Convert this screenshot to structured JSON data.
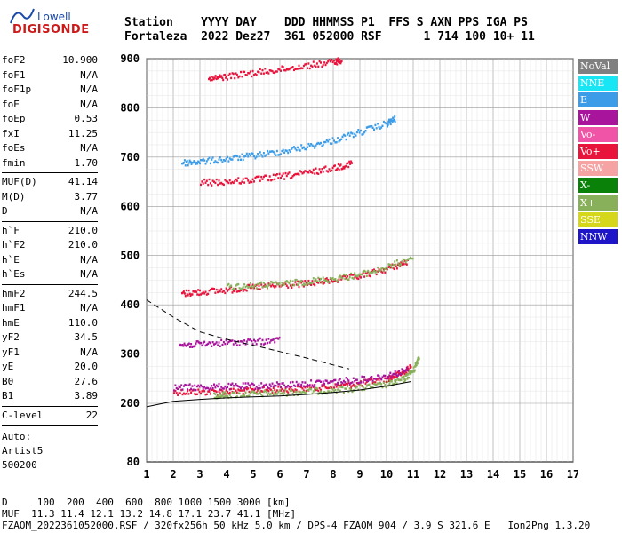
{
  "logo": {
    "line1": "Lowell",
    "line2": "DIGISONDE"
  },
  "header": {
    "row1": "Station    YYYY DAY    DDD HHMMSS P1  FFS S AXN PPS IGA PS",
    "row2": "Fortaleza  2022 Dez27  361 052000 RSF      1 714 100 10+ 11"
  },
  "params": {
    "group1": [
      {
        "k": "foF2",
        "v": "10.900"
      },
      {
        "k": "foF1",
        "v": "N/A"
      },
      {
        "k": "foF1p",
        "v": "N/A"
      },
      {
        "k": "foE",
        "v": "N/A"
      },
      {
        "k": "foEp",
        "v": "0.53"
      },
      {
        "k": "fxI",
        "v": "11.25"
      },
      {
        "k": "foEs",
        "v": "N/A"
      },
      {
        "k": "fmin",
        "v": "1.70"
      }
    ],
    "group2": [
      {
        "k": "MUF(D)",
        "v": "41.14"
      },
      {
        "k": "M(D)",
        "v": "3.77"
      },
      {
        "k": "D",
        "v": "N/A"
      }
    ],
    "group3": [
      {
        "k": "h`F",
        "v": "210.0"
      },
      {
        "k": "h`F2",
        "v": "210.0"
      },
      {
        "k": "h`E",
        "v": "N/A"
      },
      {
        "k": "h`Es",
        "v": "N/A"
      }
    ],
    "group4": [
      {
        "k": "hmF2",
        "v": "244.5"
      },
      {
        "k": "hmF1",
        "v": "N/A"
      },
      {
        "k": "hmE",
        "v": "110.0"
      },
      {
        "k": "yF2",
        "v": "34.5"
      },
      {
        "k": "yF1",
        "v": "N/A"
      },
      {
        "k": "yE",
        "v": "20.0"
      },
      {
        "k": "B0",
        "v": "27.6"
      },
      {
        "k": "B1",
        "v": "3.89"
      }
    ],
    "group5": [
      {
        "k": "C-level",
        "v": "22"
      }
    ]
  },
  "auto": {
    "l1": "Auto:",
    "l2": "Artist5",
    "l3": "500200"
  },
  "legend": [
    {
      "label": "NoVal",
      "color": "#808080"
    },
    {
      "label": "NNE",
      "color": "#19e6f5"
    },
    {
      "label": "E",
      "color": "#3c9ce8"
    },
    {
      "label": "W",
      "color": "#a8149c"
    },
    {
      "label": "Vo-",
      "color": "#ef54a6"
    },
    {
      "label": "Vo+",
      "color": "#e8143c"
    },
    {
      "label": "SSW",
      "color": "#f5a3a3"
    },
    {
      "label": "X-",
      "color": "#0a820a"
    },
    {
      "label": "X+",
      "color": "#88b05a"
    },
    {
      "label": "SSE",
      "color": "#d6d61a"
    },
    {
      "label": "NNW",
      "color": "#1e14c8"
    }
  ],
  "footer": {
    "l1": "D     100  200  400  600  800 1000 1500 3000 [km]",
    "l2": "MUF  11.3 11.4 12.1 13.2 14.8 17.1 23.7 41.1 [MHz]",
    "l3": "FZAOM_2022361052000.RSF / 320fx256h 50 kHz 5.0 km / DPS-4 FZAOM 904 / 3.9 S 321.6 E   Ion2Png 1.3.20"
  },
  "chart_data": {
    "type": "scatter",
    "title": "",
    "xlabel": "",
    "ylabel": "",
    "xlim": [
      1,
      17
    ],
    "ylim": [
      80,
      900
    ],
    "x_ticks": [
      1,
      2,
      3,
      4,
      5,
      6,
      7,
      8,
      9,
      10,
      11,
      12,
      13,
      14,
      15,
      16,
      17
    ],
    "y_ticks": [
      80,
      200,
      300,
      400,
      500,
      600,
      700,
      800,
      900
    ],
    "traces": [
      {
        "name": "o-trace F",
        "color": "#e8143c",
        "x": [
          2.0,
          3,
          4,
          5,
          6,
          7,
          8,
          9,
          10,
          10.5,
          10.9
        ],
        "y": [
          225,
          225,
          226,
          228,
          230,
          232,
          236,
          242,
          252,
          262,
          275
        ]
      },
      {
        "name": "x-trace F",
        "color": "#88b05a",
        "x": [
          3.5,
          4,
          5,
          6,
          7,
          8,
          9,
          10,
          10.6,
          11.0,
          11.2
        ],
        "y": [
          218,
          219,
          221,
          223,
          226,
          229,
          233,
          240,
          250,
          270,
          300
        ]
      },
      {
        "name": "W layer",
        "color": "#a8149c",
        "x": [
          2.0,
          3,
          4,
          5,
          6,
          7,
          8,
          9,
          10,
          10.8
        ],
        "y": [
          234,
          235,
          236,
          237,
          239,
          242,
          246,
          250,
          258,
          270
        ]
      },
      {
        "name": "2F",
        "color": "#e8143c",
        "x": [
          2.3,
          3,
          4,
          5,
          6,
          7,
          8,
          9,
          10,
          10.8
        ],
        "y": [
          425,
          428,
          432,
          437,
          441,
          445,
          452,
          460,
          475,
          490
        ]
      },
      {
        "name": "2F x",
        "color": "#88b05a",
        "x": [
          4,
          5,
          6,
          7,
          8,
          9,
          10,
          11
        ],
        "y": [
          438,
          441,
          444,
          449,
          455,
          463,
          478,
          500
        ]
      },
      {
        "name": "3F E",
        "color": "#3c9ce8",
        "x": [
          2.3,
          3,
          4,
          5,
          6,
          7,
          8,
          9,
          10,
          10.3
        ],
        "y": [
          690,
          693,
          698,
          705,
          713,
          723,
          736,
          753,
          770,
          780
        ]
      },
      {
        "name": "3F o",
        "color": "#e8143c",
        "x": [
          3,
          4,
          5,
          6,
          7,
          8,
          8.7
        ],
        "y": [
          650,
          652,
          656,
          662,
          670,
          680,
          690
        ]
      },
      {
        "name": "4F",
        "color": "#e8143c",
        "x": [
          3.3,
          4,
          5,
          6,
          7,
          8,
          8.3
        ],
        "y": [
          860,
          866,
          873,
          880,
          888,
          895,
          900
        ]
      },
      {
        "name": "spread",
        "color": "#a8149c",
        "x": [
          2.2,
          3,
          4,
          5,
          6
        ],
        "y": [
          320,
          322,
          325,
          327,
          330
        ]
      }
    ],
    "profile_solid": {
      "x": [
        1.0,
        2,
        3,
        4,
        5,
        6,
        7,
        8,
        9,
        10,
        10.9
      ],
      "y": [
        193,
        204,
        208,
        211,
        213,
        215,
        218,
        222,
        227,
        235,
        244
      ]
    },
    "profile_dashed": {
      "x": [
        1.0,
        2,
        3,
        4,
        5,
        6,
        7,
        8,
        8.6
      ],
      "y": [
        410,
        375,
        345,
        330,
        318,
        305,
        292,
        278,
        270
      ]
    }
  }
}
